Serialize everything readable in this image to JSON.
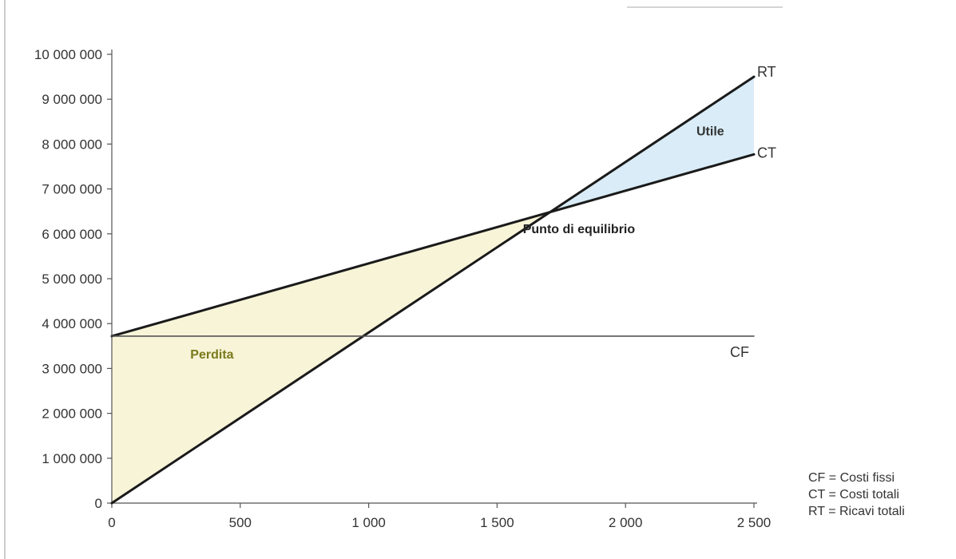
{
  "chart_data": {
    "type": "line",
    "x": [
      0,
      2500
    ],
    "xlim": [
      0,
      2500
    ],
    "ylim": [
      0,
      10000000
    ],
    "x_ticks": [
      0,
      500,
      1000,
      1500,
      2000,
      2500
    ],
    "x_tick_labels": [
      "0",
      "500",
      "1 000",
      "1 500",
      "2 000",
      "2 500"
    ],
    "y_ticks": [
      0,
      1000000,
      2000000,
      3000000,
      4000000,
      5000000,
      6000000,
      7000000,
      8000000,
      9000000,
      10000000
    ],
    "y_tick_labels": [
      "0",
      "1 000 000",
      "2 000 000",
      "3 000 000",
      "4 000 000",
      "5 000 000",
      "6 000 000",
      "7 000 000",
      "8 000 000",
      "9 000 000",
      "10 000 000"
    ],
    "series": [
      {
        "name": "RT",
        "values": [
          0,
          9500000
        ],
        "color": "#1a1a1a"
      },
      {
        "name": "CT",
        "values": [
          3720000,
          7770000
        ],
        "color": "#1a1a1a"
      },
      {
        "name": "CF",
        "values": [
          3720000,
          3720000
        ],
        "color": "#555555"
      }
    ],
    "break_even": {
      "x": 1700,
      "y": 6480000,
      "label": "Punto di equilibrio"
    },
    "areas": [
      {
        "label": "Perdita",
        "x_from": 0,
        "x_to": 1700,
        "color": "#f7f4d8",
        "label_color": "#7a7a1a"
      },
      {
        "label": "Utile",
        "x_from": 1700,
        "x_to": 2500,
        "color": "#d9ecf7",
        "label_color": "#333333"
      }
    ],
    "grid": false,
    "legend": [
      "CF = Costi fissi",
      "CT = Costi totali",
      "RT = Ricavi totali"
    ],
    "legend_position": "bottom-right"
  }
}
